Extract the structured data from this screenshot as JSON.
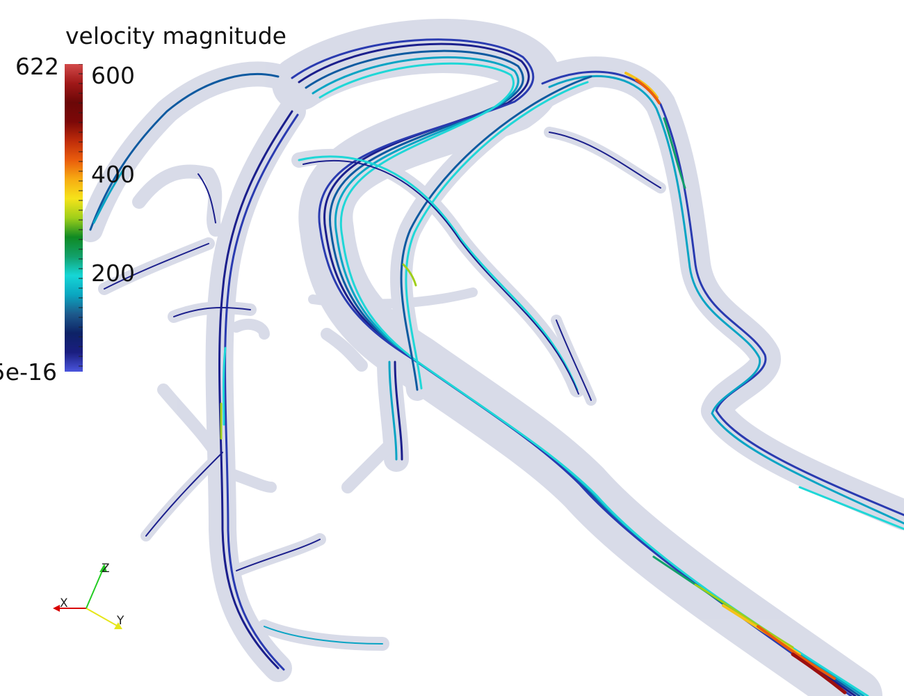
{
  "legend": {
    "title": "velocity magnitude",
    "max_label": "622",
    "min_label": "5e-16",
    "tick_labels": [
      "600",
      "400",
      "200"
    ],
    "colormap": [
      "#4a55dd",
      "#1a1e80",
      "#0d2266",
      "#1d5a8c",
      "#0aa6c0",
      "#16d6d6",
      "#12a06a",
      "#0f8a23",
      "#9fcf1a",
      "#f5e31a",
      "#f7ad12",
      "#ea5d0c",
      "#bf2c0a",
      "#7c0808",
      "#6b0707",
      "#a01818",
      "#d24a4a"
    ]
  },
  "orientation_axes": {
    "x_label": "X",
    "y_label": "Y",
    "z_label": "Z",
    "x_color": "#d80000",
    "y_color": "#e6e61a",
    "z_color": "#22cc22"
  },
  "scene": {
    "mesh_color": "#b9bfd6",
    "streamline_colors": [
      "#1b1f8c",
      "#2a3bb0",
      "#0e5aa0",
      "#0aa4c4",
      "#1fd7d7",
      "#12a06a",
      "#9fcf1a",
      "#f5c21a",
      "#ea5d0c",
      "#9c1010"
    ]
  }
}
